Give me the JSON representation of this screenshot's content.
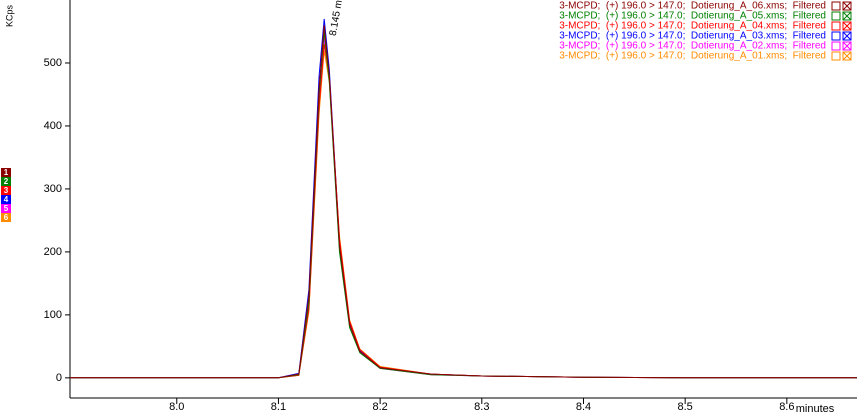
{
  "chart_data": {
    "type": "line",
    "y_label": "KCps",
    "x_label": "minutes",
    "annotation": "8.145 m",
    "x": [
      7.895,
      8.1,
      8.12,
      8.13,
      8.14,
      8.145,
      8.15,
      8.16,
      8.17,
      8.18,
      8.2,
      8.25,
      8.3,
      8.4,
      8.5,
      8.669
    ],
    "series": [
      {
        "name": "3-MCPD;  (+) 196.0 > 147.0;  Dotierung_A_06.xms;  Filtered",
        "color": "#8b0000",
        "values": [
          0,
          0,
          6,
          130,
          460,
          560,
          480,
          210,
          85,
          42,
          16,
          6,
          3,
          1,
          0,
          0
        ]
      },
      {
        "name": "3-MCPD;  (+) 196.0 > 147.0;  Dotierung_A_05.xms;  Filtered",
        "color": "#008000",
        "values": [
          0,
          0,
          5,
          120,
          450,
          550,
          470,
          200,
          80,
          40,
          15,
          5,
          3,
          1,
          0,
          0
        ]
      },
      {
        "name": "3-MCPD;  (+) 196.0 > 147.0;  Dotierung_A_04.xms;  Filtered",
        "color": "#ff0000",
        "values": [
          0,
          0,
          4,
          110,
          430,
          530,
          480,
          220,
          90,
          45,
          17,
          6,
          3,
          1,
          0,
          0
        ]
      },
      {
        "name": "3-MCPD;  (+) 196.0 > 147.0;  Dotierung_A_03.xms;  Filtered",
        "color": "#0000ff",
        "values": [
          0,
          0,
          7,
          140,
          480,
          570,
          490,
          215,
          88,
          43,
          16,
          6,
          3,
          1,
          0,
          0
        ]
      },
      {
        "name": "3-MCPD;  (+) 196.0 > 147.0;  Dotierung_A_02.xms;  Filtered",
        "color": "#ff00ff",
        "values": [
          0,
          0,
          5,
          115,
          440,
          540,
          475,
          205,
          82,
          41,
          15,
          5,
          3,
          1,
          0,
          0
        ]
      },
      {
        "name": "3-MCPD;  (+) 196.0 > 147.0;  Dotierung_A_01.xms;  Filtered",
        "color": "#ff8c00",
        "values": [
          0,
          0,
          4,
          105,
          420,
          520,
          470,
          225,
          92,
          46,
          18,
          6,
          3,
          1,
          0,
          0
        ]
      }
    ],
    "trace_numbers": [
      "1",
      "2",
      "3",
      "4",
      "5",
      "6"
    ],
    "trace_colors": [
      "#8b0000",
      "#008000",
      "#ff0000",
      "#0000ff",
      "#ff00ff",
      "#ff8c00"
    ],
    "xlim": [
      7.895,
      8.669
    ],
    "ylim": [
      -32,
      600
    ],
    "xticks": [
      {
        "value": 8,
        "label": "8.0"
      },
      8.1,
      8.2,
      8.3,
      8.4,
      8.5,
      8.6
    ],
    "yticks": [
      0,
      100,
      200,
      300,
      400,
      500
    ],
    "legend": "top-right"
  }
}
